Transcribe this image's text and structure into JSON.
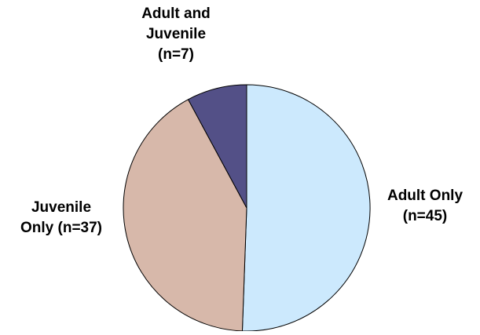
{
  "chart_data": {
    "type": "pie",
    "title": "",
    "slices": [
      {
        "label_lines": [
          "Adult Only",
          "(n=45)"
        ],
        "value": 45,
        "color": "#cce9fd"
      },
      {
        "label_lines": [
          "Juvenile",
          "Only (n=37)"
        ],
        "value": 37,
        "color": "#d7b8aa"
      },
      {
        "label_lines": [
          "Adult and",
          "Juvenile",
          "(n=7)"
        ],
        "value": 7,
        "color": "#535087"
      }
    ],
    "start_angle_deg": 0,
    "direction": "clockwise",
    "legend": "none"
  }
}
